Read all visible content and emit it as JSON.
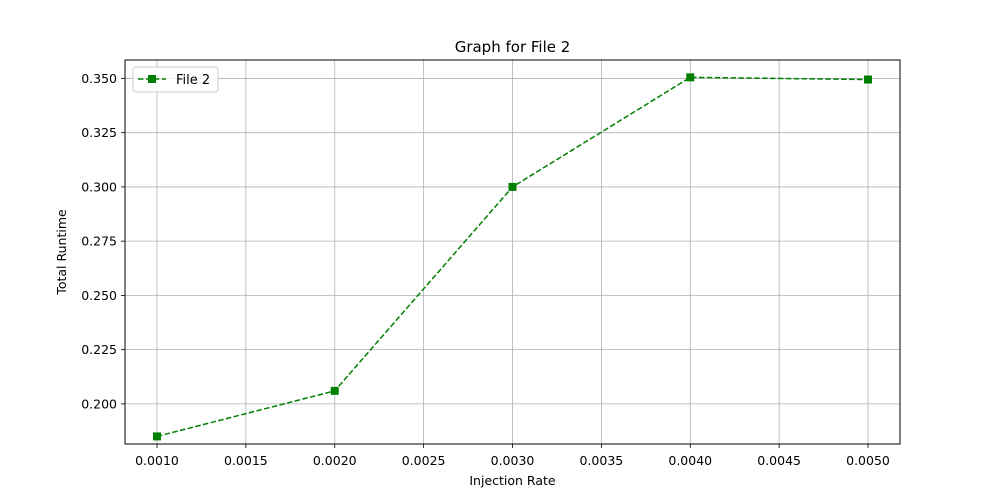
{
  "chart_data": {
    "type": "line",
    "title": "Graph for File 2",
    "xlabel": "Injection Rate",
    "ylabel": "Total Runtime",
    "xlim": [
      0.00082,
      0.00518
    ],
    "ylim": [
      0.1815,
      0.3585
    ],
    "x_ticks": [
      0.001,
      0.0015,
      0.002,
      0.0025,
      0.003,
      0.0035,
      0.004,
      0.0045,
      0.005
    ],
    "x_tick_labels": [
      "0.0010",
      "0.0015",
      "0.0020",
      "0.0025",
      "0.0030",
      "0.0035",
      "0.0040",
      "0.0045",
      "0.0050"
    ],
    "y_ticks": [
      0.2,
      0.225,
      0.25,
      0.275,
      0.3,
      0.325,
      0.35
    ],
    "y_tick_labels": [
      "0.200",
      "0.225",
      "0.250",
      "0.275",
      "0.300",
      "0.325",
      "0.350"
    ],
    "grid": true,
    "legend_position": "top-left",
    "series": [
      {
        "name": "File 2",
        "color": "#008000",
        "line_style": "dashed",
        "marker": "square",
        "x": [
          0.001,
          0.002,
          0.003,
          0.004,
          0.005
        ],
        "y": [
          0.185,
          0.206,
          0.3,
          0.3505,
          0.3495
        ]
      }
    ]
  }
}
